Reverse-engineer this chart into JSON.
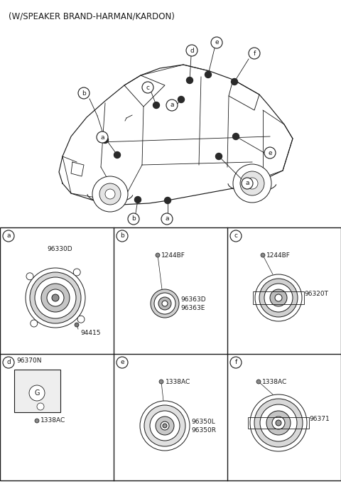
{
  "title": "(W/SPEAKER BRAND-HARMAN/KARDON)",
  "bg_color": "#ffffff",
  "line_color": "#1a1a1a",
  "text_color": "#1a1a1a",
  "cell_labels": [
    "a",
    "b",
    "c",
    "d",
    "e",
    "f"
  ],
  "part_numbers": {
    "a": [
      "96330D",
      "94415"
    ],
    "b": [
      "1244BF",
      "96363D",
      "96363E"
    ],
    "c": [
      "1244BF",
      "96320T"
    ],
    "d": [
      "96370N",
      "1338AC"
    ],
    "e": [
      "1338AC",
      "96350L",
      "96350R"
    ],
    "f": [
      "1338AC",
      "96371"
    ]
  }
}
